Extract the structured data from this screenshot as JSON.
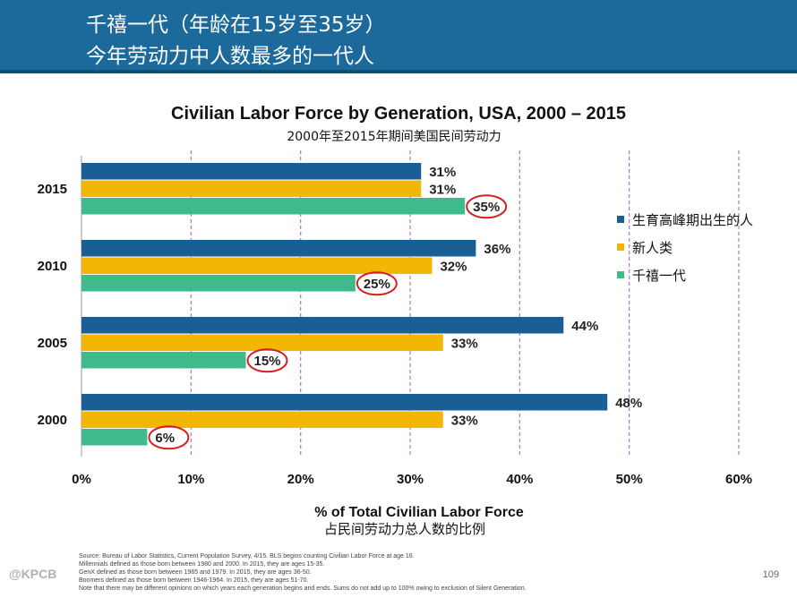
{
  "header": {
    "line1": "千禧一代（年龄在15岁至35岁）",
    "line2": "今年劳动力中人数最多的一代人"
  },
  "chart_data": {
    "type": "bar",
    "orientation": "horizontal",
    "title": "Civilian Labor Force by Generation, USA, 2000 – 2015",
    "subtitle": "2000年至2015年期间美国民间劳动力",
    "xlabel": "% of Total Civilian Labor Force",
    "xlabel_cn": "占民间劳动力总人数的比例",
    "ylabel": "",
    "xlim": [
      0,
      60
    ],
    "xticks": [
      0,
      10,
      20,
      30,
      40,
      50,
      60
    ],
    "xtick_labels": [
      "0%",
      "10%",
      "20%",
      "30%",
      "40%",
      "50%",
      "60%"
    ],
    "grid": "vertical dashed",
    "legend_position": "right",
    "categories": [
      "2015",
      "2010",
      "2005",
      "2000"
    ],
    "series": [
      {
        "name": "生育高峰期出生的人",
        "color": "#1a5e96",
        "values": [
          31,
          36,
          44,
          48
        ],
        "labels": [
          "31%",
          "36%",
          "44%",
          "48%"
        ]
      },
      {
        "name": "新人类",
        "color": "#f2b705",
        "values": [
          31,
          32,
          33,
          33
        ],
        "labels": [
          "31%",
          "32%",
          "33%",
          "33%"
        ]
      },
      {
        "name": "千禧一代",
        "color": "#3fba8b",
        "values": [
          35,
          25,
          15,
          6
        ],
        "labels": [
          "35%",
          "25%",
          "15%",
          "6%"
        ],
        "circled": true
      }
    ],
    "highlight_color": "#d42020"
  },
  "footnotes": [
    "Source: Bureau of Labor Statistics, Current Population Survey, 4/15. BLS begins counting Civilian Labor Force at age 16.",
    "Millennials defined as those born between 1980 and 2000. In 2015, they are ages 15-35.",
    "GenX defined as those born between 1965 and 1979. In 2015, they are ages 36-50.",
    "Boomers defined as those born between 1946-1964. In 2015, they are ages 51-70.",
    "Note that there may be different opinions on which years each generation begins and ends. Sums do not add up to 100% owing to exclusion of Silent Generation."
  ],
  "logo": "@KPCB",
  "page_number": "109"
}
